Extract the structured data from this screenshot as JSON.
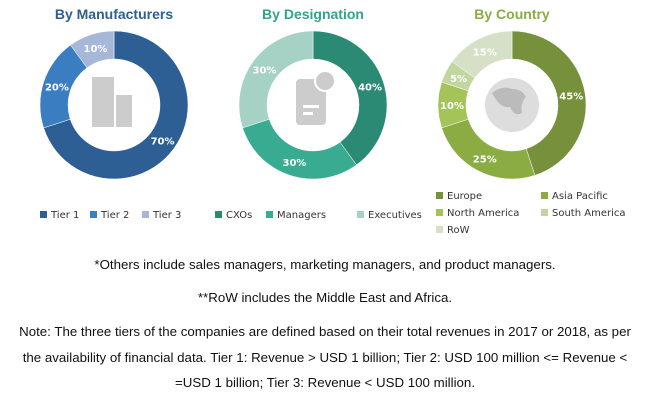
{
  "chart_data": [
    {
      "type": "pie",
      "title": "By Manufacturers",
      "title_color": "#2e5f94",
      "center_icon": "building-icon",
      "categories": [
        "Tier 1",
        "Tier 2",
        "Tier 3"
      ],
      "values": [
        70,
        20,
        10
      ],
      "labels": [
        "70%",
        "20%",
        "10%"
      ],
      "colors": [
        "#2e5f94",
        "#3a7ec1",
        "#a7b7d8"
      ]
    },
    {
      "type": "pie",
      "title": "By Designation",
      "title_color": "#2fa58a",
      "center_icon": "document-icon",
      "categories": [
        "CXOs",
        "Managers",
        "Executives"
      ],
      "values": [
        40,
        30,
        30
      ],
      "labels": [
        "40%",
        "30%",
        "30%"
      ],
      "colors": [
        "#2a8a73",
        "#38ab91",
        "#a6d1c5"
      ]
    },
    {
      "type": "pie",
      "title": "By Country",
      "title_color": "#8bac43",
      "center_icon": "globe-icon",
      "categories": [
        "Europe",
        "Asia Pacific",
        "North America",
        "South America",
        "RoW"
      ],
      "values": [
        45,
        25,
        10,
        5,
        15
      ],
      "labels": [
        "45%",
        "25%",
        "10%",
        "5%",
        "15%"
      ],
      "colors": [
        "#76903b",
        "#8bac43",
        "#a4c45a",
        "#c3d6a0",
        "#d6e0c6"
      ]
    }
  ],
  "notes": [
    "*Others include sales managers, marketing managers, and product managers.",
    "**RoW includes the Middle East and Africa.",
    "Note: The three tiers of the companies are defined based on their total revenues in 2017 or 2018, as per",
    "the availability of financial data. Tier 1: Revenue > USD 1 billion; Tier 2: USD 100 million <= Revenue <",
    "=USD 1 billion; Tier 3: Revenue < USD 100 million."
  ]
}
